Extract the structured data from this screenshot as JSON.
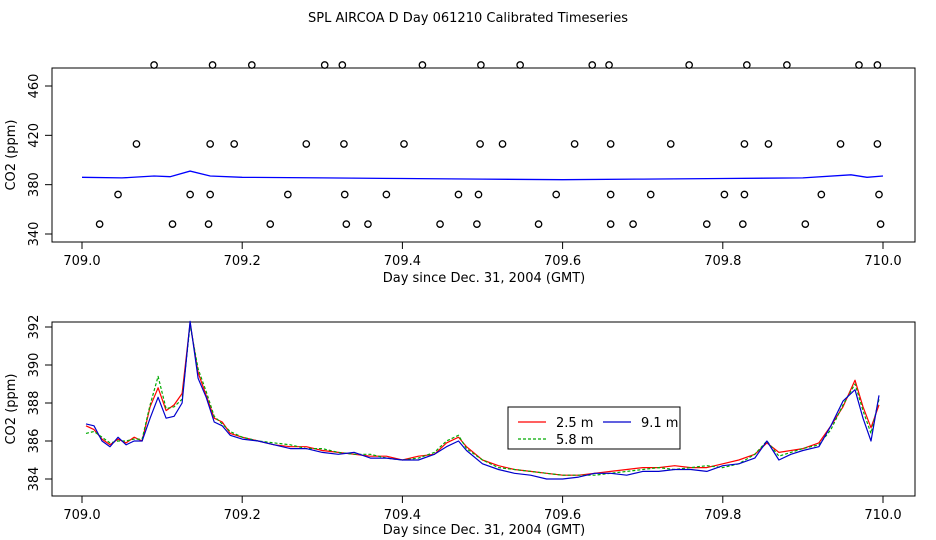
{
  "chart_data": [
    {
      "type": "scatter",
      "title": "SPL AIRCOA D  Day 061210  Calibrated Timeseries",
      "xlabel": "Day since Dec. 31, 2004 (GMT)",
      "ylabel": "CO2 (ppm)",
      "xlim": [
        709.0,
        710.0
      ],
      "ylim": [
        340,
        480
      ],
      "x_ticks": [
        709.0,
        709.2,
        709.4,
        709.6,
        709.8,
        710.0
      ],
      "x_tick_labels": [
        "709.0",
        "709.2",
        "709.4",
        "709.6",
        "709.8",
        "710.0"
      ],
      "y_ticks": [
        340,
        380,
        420,
        460
      ],
      "y_tick_labels": [
        "340",
        "380",
        "420",
        "460"
      ],
      "points": [
        {
          "x": 709.022,
          "y": 348
        },
        {
          "x": 709.113,
          "y": 348
        },
        {
          "x": 709.158,
          "y": 348
        },
        {
          "x": 709.235,
          "y": 348
        },
        {
          "x": 709.33,
          "y": 348
        },
        {
          "x": 709.357,
          "y": 348
        },
        {
          "x": 709.447,
          "y": 348
        },
        {
          "x": 709.493,
          "y": 348
        },
        {
          "x": 709.57,
          "y": 348
        },
        {
          "x": 709.66,
          "y": 348
        },
        {
          "x": 709.688,
          "y": 348
        },
        {
          "x": 709.78,
          "y": 348
        },
        {
          "x": 709.825,
          "y": 348
        },
        {
          "x": 709.903,
          "y": 348
        },
        {
          "x": 709.997,
          "y": 348
        },
        {
          "x": 709.045,
          "y": 372
        },
        {
          "x": 709.135,
          "y": 372
        },
        {
          "x": 709.16,
          "y": 372
        },
        {
          "x": 709.257,
          "y": 372
        },
        {
          "x": 709.328,
          "y": 372
        },
        {
          "x": 709.38,
          "y": 372
        },
        {
          "x": 709.47,
          "y": 372
        },
        {
          "x": 709.495,
          "y": 372
        },
        {
          "x": 709.592,
          "y": 372
        },
        {
          "x": 709.66,
          "y": 372
        },
        {
          "x": 709.71,
          "y": 372
        },
        {
          "x": 709.802,
          "y": 372
        },
        {
          "x": 709.827,
          "y": 372
        },
        {
          "x": 709.923,
          "y": 372
        },
        {
          "x": 709.995,
          "y": 372
        },
        {
          "x": 709.068,
          "y": 413
        },
        {
          "x": 709.16,
          "y": 413
        },
        {
          "x": 709.19,
          "y": 413
        },
        {
          "x": 709.28,
          "y": 413
        },
        {
          "x": 709.327,
          "y": 413
        },
        {
          "x": 709.402,
          "y": 413
        },
        {
          "x": 709.497,
          "y": 413
        },
        {
          "x": 709.525,
          "y": 413
        },
        {
          "x": 709.615,
          "y": 413
        },
        {
          "x": 709.66,
          "y": 413
        },
        {
          "x": 709.735,
          "y": 413
        },
        {
          "x": 709.827,
          "y": 413
        },
        {
          "x": 709.857,
          "y": 413
        },
        {
          "x": 709.947,
          "y": 413
        },
        {
          "x": 709.993,
          "y": 413
        },
        {
          "x": 709.09,
          "y": 477
        },
        {
          "x": 709.163,
          "y": 477
        },
        {
          "x": 709.212,
          "y": 477
        },
        {
          "x": 709.303,
          "y": 477
        },
        {
          "x": 709.325,
          "y": 477
        },
        {
          "x": 709.425,
          "y": 477
        },
        {
          "x": 709.498,
          "y": 477
        },
        {
          "x": 709.547,
          "y": 477
        },
        {
          "x": 709.637,
          "y": 477
        },
        {
          "x": 709.658,
          "y": 477
        },
        {
          "x": 709.758,
          "y": 477
        },
        {
          "x": 709.83,
          "y": 477
        },
        {
          "x": 709.88,
          "y": 477
        },
        {
          "x": 709.97,
          "y": 477
        },
        {
          "x": 709.993,
          "y": 477
        }
      ],
      "line": {
        "x": [
          709.0,
          709.05,
          709.09,
          709.11,
          709.135,
          709.16,
          709.2,
          709.3,
          709.4,
          709.5,
          709.6,
          709.7,
          709.8,
          709.9,
          709.96,
          709.98,
          710.0
        ],
        "y": [
          386,
          385.5,
          387,
          386.5,
          391,
          387,
          386,
          385.5,
          385,
          384.5,
          384,
          384.5,
          385,
          385.5,
          388,
          386,
          387
        ]
      },
      "colors": {
        "points": "#000000",
        "line": "#0000ff"
      }
    },
    {
      "type": "line",
      "xlabel": "Day since Dec. 31, 2004 (GMT)",
      "ylabel": "CO2 (ppm)",
      "xlim": [
        709.0,
        710.0
      ],
      "ylim": [
        383.6,
        392.6
      ],
      "x_ticks": [
        709.0,
        709.2,
        709.4,
        709.6,
        709.8,
        710.0
      ],
      "x_tick_labels": [
        "709.0",
        "709.2",
        "709.4",
        "709.6",
        "709.8",
        "710.0"
      ],
      "y_ticks": [
        384,
        386,
        388,
        390,
        392
      ],
      "y_tick_labels": [
        "384",
        "386",
        "388",
        "390",
        "392"
      ],
      "x": [
        709.005,
        709.015,
        709.025,
        709.035,
        709.045,
        709.055,
        709.065,
        709.075,
        709.085,
        709.095,
        709.105,
        709.115,
        709.125,
        709.135,
        709.145,
        709.155,
        709.165,
        709.175,
        709.185,
        709.2,
        709.22,
        709.24,
        709.26,
        709.28,
        709.3,
        709.32,
        709.34,
        709.36,
        709.38,
        709.4,
        709.42,
        709.44,
        709.455,
        709.47,
        709.48,
        709.5,
        709.52,
        709.54,
        709.56,
        709.58,
        709.6,
        709.62,
        709.64,
        709.66,
        709.68,
        709.7,
        709.72,
        709.74,
        709.76,
        709.78,
        709.8,
        709.82,
        709.84,
        709.855,
        709.87,
        709.885,
        709.9,
        709.92,
        709.935,
        709.95,
        709.965,
        709.975,
        709.985,
        709.995
      ],
      "series": [
        {
          "name": "2.5 m",
          "color": "#ff0000",
          "values": [
            386.8,
            386.6,
            386.1,
            385.8,
            386.1,
            385.9,
            386.2,
            386.0,
            387.8,
            388.8,
            387.6,
            387.9,
            388.5,
            392.2,
            389.6,
            388.4,
            387.2,
            387.0,
            386.4,
            386.2,
            386.0,
            385.8,
            385.7,
            385.7,
            385.5,
            385.4,
            385.3,
            385.2,
            385.2,
            385.0,
            385.2,
            385.3,
            385.9,
            386.2,
            385.7,
            385.0,
            384.7,
            384.5,
            384.4,
            384.3,
            384.2,
            384.2,
            384.3,
            384.4,
            384.5,
            384.6,
            384.6,
            384.7,
            384.6,
            384.6,
            384.8,
            385.0,
            385.3,
            385.9,
            385.4,
            385.5,
            385.6,
            385.9,
            386.8,
            387.8,
            389.2,
            387.8,
            386.7,
            387.9
          ]
        },
        {
          "name": "5.8 m",
          "color": "#00aa00",
          "values": [
            386.4,
            386.5,
            386.2,
            385.9,
            386.0,
            386.0,
            386.1,
            386.1,
            387.9,
            389.4,
            387.7,
            387.8,
            388.2,
            392.1,
            389.8,
            388.6,
            387.3,
            386.9,
            386.5,
            386.2,
            386.0,
            385.9,
            385.8,
            385.6,
            385.6,
            385.4,
            385.3,
            385.3,
            385.1,
            385.0,
            385.1,
            385.4,
            386.0,
            386.3,
            385.6,
            385.0,
            384.6,
            384.5,
            384.4,
            384.3,
            384.2,
            384.2,
            384.2,
            384.3,
            384.4,
            384.5,
            384.6,
            384.5,
            384.6,
            384.7,
            384.6,
            384.8,
            385.3,
            386.0,
            385.2,
            385.4,
            385.6,
            385.8,
            386.6,
            387.9,
            389.0,
            387.6,
            386.4,
            388.2
          ]
        },
        {
          "name": "9.1 m",
          "color": "#0000cc",
          "values": [
            386.9,
            386.8,
            386.0,
            385.7,
            386.2,
            385.8,
            386.0,
            386.0,
            387.2,
            388.3,
            387.2,
            387.3,
            388.0,
            392.3,
            389.3,
            388.3,
            387.0,
            386.8,
            386.3,
            386.1,
            386.0,
            385.8,
            385.6,
            385.6,
            385.4,
            385.3,
            385.4,
            385.1,
            385.1,
            385.0,
            385.0,
            385.3,
            385.7,
            386.0,
            385.5,
            384.8,
            384.5,
            384.3,
            384.2,
            384.0,
            384.0,
            384.1,
            384.3,
            384.3,
            384.2,
            384.4,
            384.4,
            384.5,
            384.5,
            384.4,
            384.7,
            384.8,
            385.1,
            386.0,
            385.0,
            385.3,
            385.5,
            385.7,
            386.8,
            388.1,
            388.7,
            387.2,
            386.0,
            388.4
          ]
        }
      ],
      "legend": {
        "placement": "center-right",
        "entries": [
          "2.5 m",
          "9.1 m",
          "5.8 m"
        ]
      }
    }
  ]
}
